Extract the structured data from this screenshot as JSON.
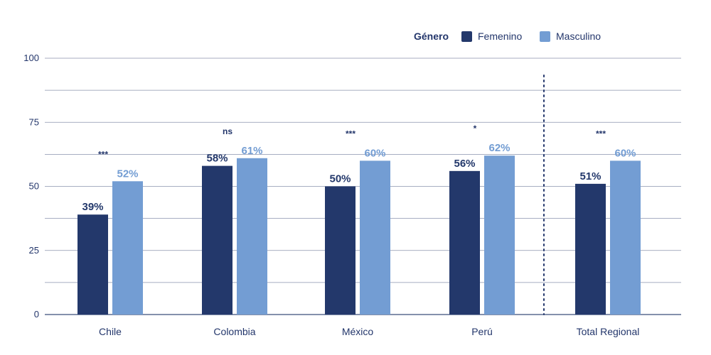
{
  "chart_data": {
    "type": "bar",
    "categories": [
      "Chile",
      "Colombia",
      "México",
      "Perú",
      "Total Regional"
    ],
    "series": [
      {
        "name": "Femenino",
        "values": [
          39,
          58,
          50,
          56,
          51
        ],
        "labels": [
          "39%",
          "58%",
          "50%",
          "56%",
          "51%"
        ],
        "color": "#23386b"
      },
      {
        "name": "Masculino",
        "values": [
          52,
          61,
          60,
          62,
          60
        ],
        "labels": [
          "52%",
          "61%",
          "60%",
          "62%",
          "60%"
        ],
        "color": "#739dd3"
      }
    ],
    "significance": [
      "***",
      "ns",
      "***",
      "*",
      "***"
    ],
    "legend": {
      "title": "Género",
      "placement": "top-right"
    },
    "yticks": [
      "0",
      "25",
      "50",
      "75",
      "100"
    ],
    "ylim": [
      0,
      100
    ],
    "grid": true,
    "xlabel": "",
    "ylabel": ""
  }
}
